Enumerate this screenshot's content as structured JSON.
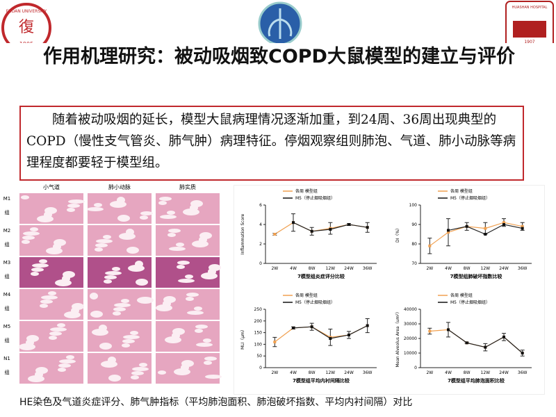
{
  "logos": {
    "left_top": "FUDAN UNIVERSITY",
    "left_year": "1905",
    "right_top": "HUASHAN HOSPITAL",
    "right_year": "1907"
  },
  "title": "作用机理研究：被动吸烟致COPD大鼠模型的建立与评价",
  "summary": "随着被动吸烟的延长，模型大鼠病理情况逐渐加重，到24周、36周出现典型的COPD（慢性支气管炎、肺气肿）病理特征。停烟观察组则肺泡、气道、肺小动脉等病理程度都要轻于模型组。",
  "histology": {
    "columns": [
      "小气道",
      "肺小动脉",
      "肺实质"
    ],
    "rows": [
      [
        "M1",
        "组"
      ],
      [
        "M2",
        "组"
      ],
      [
        "M3",
        "组"
      ],
      [
        "M4",
        "组"
      ],
      [
        "M5",
        "组"
      ],
      [
        "N1",
        "组"
      ]
    ]
  },
  "caption": "HE染色及气道炎症评分、肺气肿指标（平均肺泡面积、肺泡破坏指数、平均内衬间隔）对比",
  "chart_data": [
    {
      "type": "line",
      "ylabel": "Inflammation Score",
      "xlabel": "7模型组炎症评分比较",
      "categories": [
        "2W",
        "4W",
        "8W",
        "12W",
        "24W",
        "36W"
      ],
      "ylim": [
        0,
        6
      ],
      "yticks": [
        0,
        2,
        4,
        6
      ],
      "series": [
        {
          "name": "各周 模型组",
          "color": "#f0a050",
          "values": [
            3.0,
            4.2,
            3.3,
            3.6,
            4.0,
            3.7
          ],
          "errors": [
            0.1,
            0.9,
            0.4,
            0.6,
            0.1,
            0.5
          ]
        },
        {
          "name": "M5（停止烟吸烟组）",
          "color": "#111111",
          "values": [
            null,
            4.2,
            3.3,
            3.5,
            4.0,
            3.7
          ]
        }
      ]
    },
    {
      "type": "line",
      "ylabel": "DI（%）",
      "xlabel": "7模型组肺破坏指数比较",
      "categories": [
        "2W",
        "4W",
        "8W",
        "12W",
        "24W",
        "36W"
      ],
      "ylim": [
        70,
        100
      ],
      "yticks": [
        70,
        80,
        90,
        100
      ],
      "series": [
        {
          "name": "各周 模型组",
          "color": "#f0a050",
          "values": [
            79,
            86,
            89,
            88,
            91,
            89
          ],
          "errors": [
            4,
            7,
            2,
            3,
            2,
            2
          ]
        },
        {
          "name": "M5（停止烟吸烟组）",
          "color": "#111111",
          "values": [
            null,
            87,
            89,
            85,
            90,
            88
          ]
        }
      ]
    },
    {
      "type": "line",
      "ylabel": "MLI（μm）",
      "xlabel": "7模型组平均内衬间隔比较",
      "categories": [
        "2W",
        "4W",
        "8W",
        "12W",
        "24W",
        "36W"
      ],
      "ylim": [
        0,
        250
      ],
      "yticks": [
        0,
        50,
        100,
        150,
        200,
        250
      ],
      "series": [
        {
          "name": "各周 模型组",
          "color": "#f0a050",
          "values": [
            110,
            170,
            175,
            130,
            140,
            180
          ],
          "errors": [
            20,
            5,
            15,
            35,
            15,
            30
          ]
        },
        {
          "name": "M5（停止烟吸烟组）",
          "color": "#111111",
          "values": [
            null,
            170,
            175,
            125,
            140,
            180
          ]
        }
      ]
    },
    {
      "type": "line",
      "ylabel": "Mean Alveolus Area（um²）",
      "xlabel": "7模型组平均肺泡面积比较",
      "categories": [
        "2W",
        "4W",
        "8W",
        "12W",
        "24W",
        "36W"
      ],
      "ylim": [
        0,
        40000
      ],
      "yticks": [
        0,
        10000,
        20000,
        30000,
        40000
      ],
      "series": [
        {
          "name": "各周 模型组",
          "color": "#f0a050",
          "values": [
            25000,
            26000,
            17000,
            14000,
            21000,
            10000
          ],
          "errors": [
            2000,
            5000,
            500,
            2500,
            2500,
            2000
          ]
        },
        {
          "name": "M5（停止烟吸烟组）",
          "color": "#111111",
          "values": [
            null,
            26000,
            17000,
            14000,
            21000,
            10000
          ]
        }
      ]
    }
  ]
}
